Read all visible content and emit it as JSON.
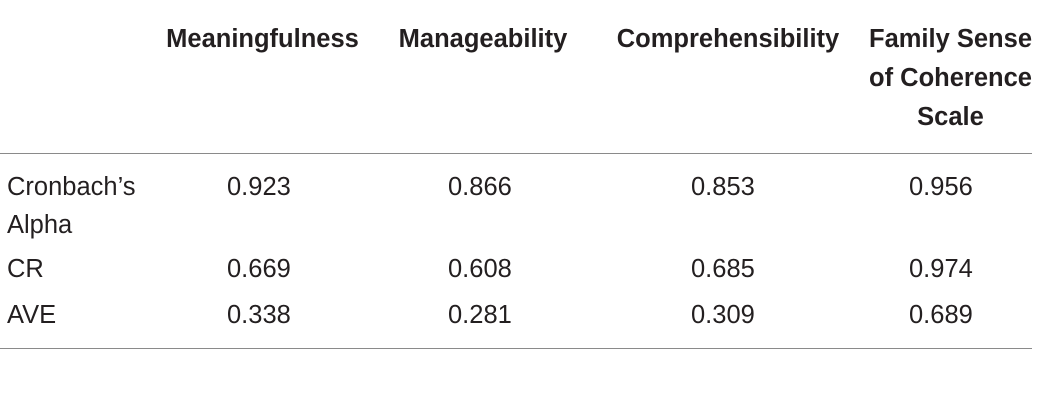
{
  "table": {
    "columns": [
      "",
      "Meaningfulness",
      "Manageability",
      "Comprehensibility",
      "Family Sense of Coherence Scale"
    ],
    "rows": [
      {
        "label": "Cronbach’s Alpha",
        "values": [
          "0.923",
          "0.866",
          "0.853",
          "0.956"
        ]
      },
      {
        "label": "CR",
        "values": [
          "0.669",
          "0.608",
          "0.685",
          "0.974"
        ]
      },
      {
        "label": "AVE",
        "values": [
          "0.338",
          "0.281",
          "0.309",
          "0.689"
        ]
      }
    ]
  }
}
